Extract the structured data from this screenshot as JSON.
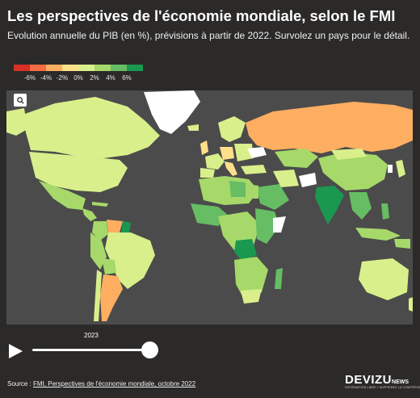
{
  "header": {
    "title": "Les perspectives de l'économie mondiale, selon le FMI",
    "subtitle": "Evolution annuelle du PIB (en %), prévisions à partir de 2022. Survolez un pays pour le détail."
  },
  "legend": {
    "items": [
      {
        "label": "-6%",
        "color": "#d73027"
      },
      {
        "label": "-4%",
        "color": "#f46d43"
      },
      {
        "label": "-2%",
        "color": "#fdae61"
      },
      {
        "label": "0%",
        "color": "#fee08b"
      },
      {
        "label": "2%",
        "color": "#d9ef8b"
      },
      {
        "label": "4%",
        "color": "#a6d96a"
      },
      {
        "label": "6%",
        "color": "#66bd63"
      },
      {
        "label": "",
        "color": "#1a9850"
      }
    ]
  },
  "map": {
    "zoom_icon": "search-icon",
    "ocean_color": "#4b4b4b"
  },
  "timeline": {
    "year": "2023",
    "play_icon": "play-icon",
    "progress": 1.0
  },
  "footer": {
    "source_prefix": "Source : ",
    "source_link": "FMI, Perspectives de l'économie mondiale, octobre 2022",
    "brand_main": "DEVIZU",
    "brand_news": "NEWS",
    "brand_tag": "INFORMATION LIBRE • SUPPRIMEZ LA COMPRÉHENSION"
  }
}
